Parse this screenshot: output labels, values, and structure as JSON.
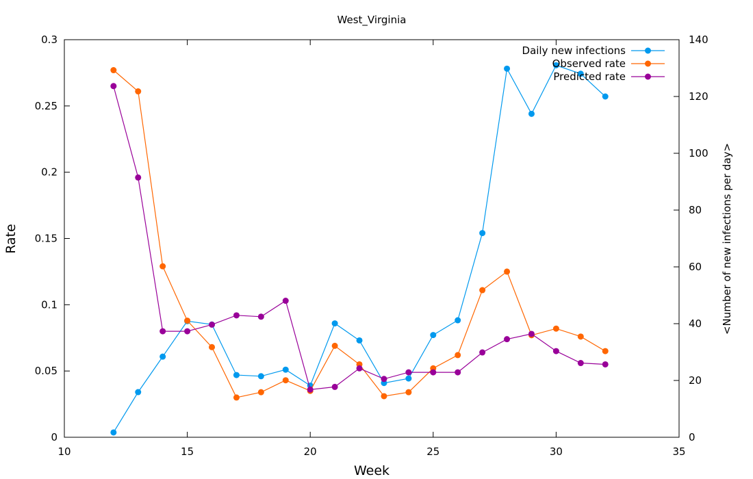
{
  "chart_data": {
    "type": "line",
    "title": "West_Virginia",
    "xlabel": "Week",
    "ylabel": "Rate",
    "y2label": "<Number of new infections per day>",
    "xlim": [
      10,
      35
    ],
    "ylim": [
      0,
      0.3
    ],
    "y2lim": [
      0,
      140
    ],
    "x_ticks": [
      10,
      15,
      20,
      25,
      30,
      35
    ],
    "x_tick_labels": [
      "10",
      "15",
      "20",
      "25",
      "30",
      "35"
    ],
    "y_ticks": [
      0,
      0.05,
      0.1,
      0.15,
      0.2,
      0.25,
      0.3
    ],
    "y_tick_labels": [
      "0",
      "0.05",
      "0.1",
      "0.15",
      "0.2",
      "0.25",
      "0.3"
    ],
    "y2_ticks": [
      0,
      20,
      40,
      60,
      80,
      100,
      120,
      140
    ],
    "y2_tick_labels": [
      "0",
      "20",
      "40",
      "60",
      "80",
      "100",
      "120",
      "140"
    ],
    "grid": false,
    "legend_position": "top-right",
    "series": [
      {
        "name": "Daily new infections",
        "axis": "y2",
        "color": "#0099ee",
        "x": [
          12,
          13,
          14,
          15,
          16,
          17,
          18,
          19,
          20,
          21,
          22,
          23,
          24,
          25,
          26,
          27,
          28,
          29,
          30,
          31,
          32
        ],
        "values": [
          1.7,
          15.9,
          28.4,
          40.9,
          39.7,
          21.9,
          21.5,
          23.8,
          18.2,
          40.1,
          34.1,
          19.1,
          20.7,
          36.0,
          41.2,
          71.9,
          129.8,
          113.9,
          131.0,
          128.0,
          120.0
        ]
      },
      {
        "name": "Observed rate",
        "axis": "y",
        "color": "#ff6600",
        "x": [
          12,
          13,
          14,
          15,
          16,
          17,
          18,
          19,
          20,
          21,
          22,
          23,
          24,
          25,
          26,
          27,
          28,
          29,
          30,
          31,
          32
        ],
        "values": [
          0.277,
          0.261,
          0.129,
          0.088,
          0.068,
          0.03,
          0.034,
          0.043,
          0.035,
          0.069,
          0.055,
          0.031,
          0.034,
          0.052,
          0.062,
          0.111,
          0.125,
          0.077,
          0.082,
          0.076,
          0.065
        ]
      },
      {
        "name": "Predicted rate",
        "axis": "y",
        "color": "#990099",
        "x": [
          12,
          13,
          14,
          15,
          16,
          17,
          18,
          19,
          20,
          21,
          22,
          23,
          24,
          25,
          26,
          27,
          28,
          29,
          30,
          31,
          32
        ],
        "values": [
          0.265,
          0.196,
          0.08,
          0.08,
          0.085,
          0.092,
          0.091,
          0.103,
          0.036,
          0.038,
          0.052,
          0.044,
          0.049,
          0.049,
          0.049,
          0.064,
          0.074,
          0.078,
          0.065,
          0.056,
          0.055
        ]
      }
    ]
  }
}
